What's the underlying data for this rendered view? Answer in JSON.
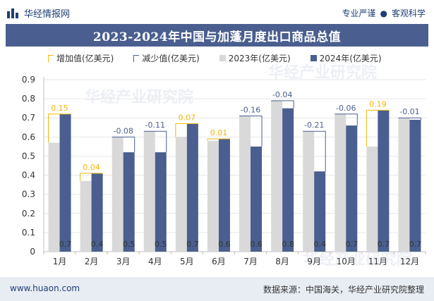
{
  "header": {
    "brand": "华经情报网",
    "tagline_left": "专业严谨",
    "tagline_sep": "●",
    "tagline_right": "客观科学"
  },
  "footer": {
    "website": "www.huaon.com",
    "source": "数据来源：中国海关，华经产业研究院整理"
  },
  "watermark": {
    "text": "华经产业研究院",
    "url": "www.huaon.com"
  },
  "colors": {
    "title_bg": "#4a5f8f",
    "series_2023": "#d9d9d9",
    "series_2024": "#4a5f8f",
    "increase": "#f2b705",
    "decrease": "#4a5f8f"
  },
  "chart_data": {
    "type": "bar",
    "title": "2023-2024年中国与加蓬月度出口商品总值",
    "categories": [
      "1月",
      "2月",
      "3月",
      "4月",
      "5月",
      "6月",
      "7月",
      "8月",
      "9月",
      "10月",
      "11月",
      "12月"
    ],
    "series": [
      {
        "name": "2023年(亿美元)",
        "values": [
          0.57,
          0.37,
          0.6,
          0.63,
          0.6,
          0.58,
          0.71,
          0.79,
          0.63,
          0.72,
          0.55,
          0.7
        ]
      },
      {
        "name": "2024年(亿美元)",
        "values": [
          0.72,
          0.41,
          0.52,
          0.52,
          0.67,
          0.59,
          0.55,
          0.75,
          0.42,
          0.66,
          0.74,
          0.69
        ]
      }
    ],
    "change_labels": [
      "0.15",
      "0.04",
      "-0.08",
      "-0.11",
      "0.07",
      "0.01",
      "-0.16",
      "-0.04",
      "-0.21",
      "-0.06",
      "0.19",
      "-0.01"
    ],
    "bottom_labels": [
      "0.7",
      "0.4",
      "0.5",
      "0.5",
      "0.7",
      "0.6",
      "0.6",
      "0.8",
      "0.4",
      "0.7",
      "0.7",
      "0.7"
    ],
    "legend": [
      "增加值(亿美元)",
      "减少值(亿美元)",
      "2023年(亿美元)",
      "2024年(亿美元)"
    ],
    "yticks": [
      "0",
      "0.1",
      "0.2",
      "0.3",
      "0.4",
      "0.5",
      "0.6",
      "0.7",
      "0.8",
      "0.9"
    ],
    "ylim": [
      0,
      0.9
    ],
    "xlabel": "",
    "ylabel": ""
  }
}
